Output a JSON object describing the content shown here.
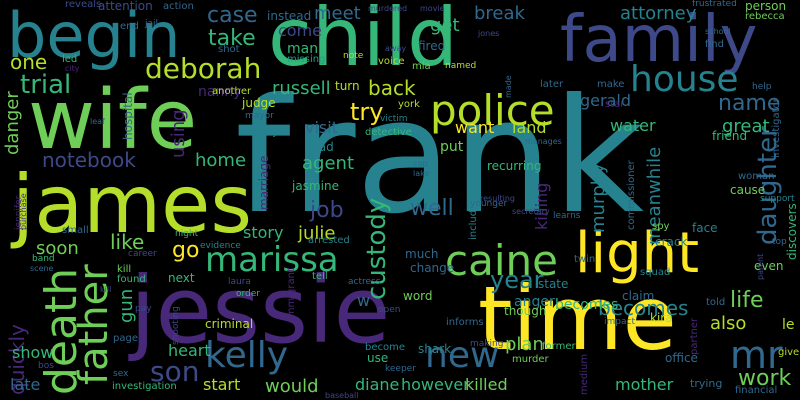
{
  "palette": {
    "background": "#000000",
    "yellow": "#fde725",
    "lime": "#b5de2b",
    "green": "#6ece58",
    "seagreen": "#35b779",
    "teal": "#1f9e89",
    "blue": "#26828e",
    "steel": "#31688e",
    "indigo": "#3e4989",
    "purple": "#482878",
    "dark": "#440154"
  },
  "words": [
    {
      "text": "frank",
      "color": "#26828e"
    },
    {
      "text": "child",
      "color": "#35b779"
    },
    {
      "text": "jessie",
      "color": "#482878"
    },
    {
      "text": "wife",
      "color": "#6ece58"
    },
    {
      "text": "james",
      "color": "#b5de2b"
    },
    {
      "text": "time",
      "color": "#fde725"
    },
    {
      "text": "family",
      "color": "#3e4989"
    },
    {
      "text": "begin",
      "color": "#26828e"
    },
    {
      "text": "light",
      "color": "#fde725"
    },
    {
      "text": "police",
      "color": "#b5de2b"
    },
    {
      "text": "death",
      "color": "#6ece58"
    },
    {
      "text": "caine",
      "color": "#6ece58"
    },
    {
      "text": "marissa",
      "color": "#35b779"
    },
    {
      "text": "father",
      "color": "#6ece58"
    },
    {
      "text": "kelly",
      "color": "#31688e"
    },
    {
      "text": "house",
      "color": "#26828e"
    },
    {
      "text": "new",
      "color": "#31688e"
    },
    {
      "text": "mr",
      "color": "#31688e"
    },
    {
      "text": "son",
      "color": "#3e4989"
    },
    {
      "text": "deborah",
      "color": "#b5de2b"
    },
    {
      "text": "trial",
      "color": "#35b779"
    },
    {
      "text": "daughter",
      "color": "#31688e"
    },
    {
      "text": "year",
      "color": "#26828e"
    },
    {
      "text": "name",
      "color": "#31688e"
    },
    {
      "text": "life",
      "color": "#6ece58"
    },
    {
      "text": "work",
      "color": "#6ece58"
    },
    {
      "text": "becomes",
      "color": "#26828e"
    },
    {
      "text": "custody",
      "color": "#35b779"
    },
    {
      "text": "quickly",
      "color": "#482878"
    },
    {
      "text": "attorney",
      "color": "#26828e"
    },
    {
      "text": "great",
      "color": "#35b779"
    },
    {
      "text": "case",
      "color": "#31688e"
    },
    {
      "text": "take",
      "color": "#35b779"
    },
    {
      "text": "russell",
      "color": "#35b779"
    },
    {
      "text": "back",
      "color": "#b5de2b"
    },
    {
      "text": "try",
      "color": "#fde725"
    },
    {
      "text": "meet",
      "color": "#31688e"
    },
    {
      "text": "get",
      "color": "#35b779"
    },
    {
      "text": "break",
      "color": "#31688e"
    },
    {
      "text": "notebook",
      "color": "#3e4989"
    },
    {
      "text": "agent",
      "color": "#35b779"
    },
    {
      "text": "visit",
      "color": "#31688e"
    },
    {
      "text": "danger",
      "color": "#6ece58"
    },
    {
      "text": "home",
      "color": "#35b779"
    },
    {
      "text": "using",
      "color": "#482878"
    },
    {
      "text": "job",
      "color": "#3e4989"
    },
    {
      "text": "julie",
      "color": "#b5de2b"
    },
    {
      "text": "story",
      "color": "#35b779"
    },
    {
      "text": "go",
      "color": "#fde725"
    },
    {
      "text": "like",
      "color": "#6ece58"
    },
    {
      "text": "soon",
      "color": "#6ece58"
    },
    {
      "text": "heart",
      "color": "#35b779"
    },
    {
      "text": "would",
      "color": "#6ece58"
    },
    {
      "text": "start",
      "color": "#b5de2b"
    },
    {
      "text": "show",
      "color": "#35b779"
    },
    {
      "text": "late",
      "color": "#31688e"
    },
    {
      "text": "gun",
      "color": "#35b779"
    },
    {
      "text": "plan",
      "color": "#6ece58"
    },
    {
      "text": "diane",
      "color": "#35b779"
    },
    {
      "text": "however",
      "color": "#35b779"
    },
    {
      "text": "killed",
      "color": "#6ece58"
    },
    {
      "text": "mother",
      "color": "#35b779"
    },
    {
      "text": "also",
      "color": "#b5de2b"
    },
    {
      "text": "one",
      "color": "#b5de2b"
    },
    {
      "text": "come",
      "color": "#3e4989"
    },
    {
      "text": "gerald",
      "color": "#31688e"
    },
    {
      "text": "land",
      "color": "#b5de2b"
    },
    {
      "text": "want",
      "color": "#fde725"
    },
    {
      "text": "water",
      "color": "#35b779"
    },
    {
      "text": "meanwhile",
      "color": "#26828e"
    },
    {
      "text": "murphy",
      "color": "#26828e"
    },
    {
      "text": "killing",
      "color": "#482878"
    },
    {
      "text": "well",
      "color": "#31688e"
    },
    {
      "text": "put",
      "color": "#6ece58"
    },
    {
      "text": "recurring",
      "color": "#35b779"
    },
    {
      "text": "anger",
      "color": "#26828e"
    },
    {
      "text": "becomes",
      "color": "#35b779"
    },
    {
      "text": "nanny",
      "color": "#482878"
    },
    {
      "text": "marriage",
      "color": "#482878"
    },
    {
      "text": "jasmine",
      "color": "#35b779"
    },
    {
      "text": "instead",
      "color": "#31688e"
    },
    {
      "text": "fired",
      "color": "#31688e"
    },
    {
      "text": "man",
      "color": "#35b779"
    },
    {
      "text": "missing",
      "color": "#1f9e89"
    },
    {
      "text": "person",
      "color": "#6ece58"
    },
    {
      "text": "rebecca",
      "color": "#6ece58"
    },
    {
      "text": "change",
      "color": "#31688e"
    },
    {
      "text": "much",
      "color": "#31688e"
    },
    {
      "text": "state",
      "color": "#26828e"
    },
    {
      "text": "word",
      "color": "#6ece58"
    },
    {
      "text": "shark",
      "color": "#26828e"
    },
    {
      "text": "become",
      "color": "#26828e"
    },
    {
      "text": "murder",
      "color": "#6ece58"
    },
    {
      "text": "criminal",
      "color": "#b5de2b"
    },
    {
      "text": "investigation",
      "color": "#35b779"
    },
    {
      "text": "next",
      "color": "#35b779"
    },
    {
      "text": "kill",
      "color": "#6ece58"
    },
    {
      "text": "found",
      "color": "#35b779"
    },
    {
      "text": "detective",
      "color": "#35b779"
    },
    {
      "text": "judge",
      "color": "#b5de2b"
    },
    {
      "text": "deputy",
      "color": "#26828e"
    },
    {
      "text": "lead",
      "color": "#26828e"
    },
    {
      "text": "arrested",
      "color": "#26828e"
    },
    {
      "text": "evidence",
      "color": "#26828e"
    },
    {
      "text": "another",
      "color": "#b5de2b"
    },
    {
      "text": "hospital",
      "color": "#31688e"
    },
    {
      "text": "jennifer",
      "color": "#482878"
    },
    {
      "text": "attention",
      "color": "#3e4989"
    },
    {
      "text": "reveals",
      "color": "#3e4989"
    },
    {
      "text": "action",
      "color": "#31688e"
    },
    {
      "text": "end",
      "color": "#31688e"
    },
    {
      "text": "jail",
      "color": "#31688e"
    },
    {
      "text": "shot",
      "color": "#31688e"
    },
    {
      "text": "led",
      "color": "#35b779"
    },
    {
      "text": "turn",
      "color": "#b5de2b"
    },
    {
      "text": "voice",
      "color": "#b5de2b"
    },
    {
      "text": "note",
      "color": "#b5de2b"
    },
    {
      "text": "mia",
      "color": "#6ece58"
    },
    {
      "text": "named",
      "color": "#b5de2b"
    },
    {
      "text": "york",
      "color": "#b5de2b"
    },
    {
      "text": "mayor",
      "color": "#31688e"
    },
    {
      "text": "victim",
      "color": "#26828e"
    },
    {
      "text": "later",
      "color": "#31688e"
    },
    {
      "text": "make",
      "color": "#31688e"
    },
    {
      "text": "star",
      "color": "#482878"
    },
    {
      "text": "friend",
      "color": "#35b779"
    },
    {
      "text": "investigator",
      "color": "#31688e"
    },
    {
      "text": "help",
      "color": "#31688e"
    },
    {
      "text": "woman",
      "color": "#31688e"
    },
    {
      "text": "cause",
      "color": "#6ece58"
    },
    {
      "text": "support",
      "color": "#26828e"
    },
    {
      "text": "discovers",
      "color": "#35b779"
    },
    {
      "text": "crack",
      "color": "#26828e"
    },
    {
      "text": "face",
      "color": "#26828e"
    },
    {
      "text": "spy",
      "color": "#6ece58"
    },
    {
      "text": "twin",
      "color": "#31688e"
    },
    {
      "text": "squad",
      "color": "#26828e"
    },
    {
      "text": "claim",
      "color": "#31688e"
    },
    {
      "text": "impact",
      "color": "#31688e"
    },
    {
      "text": "kira",
      "color": "#b5de2b"
    },
    {
      "text": "told",
      "color": "#31688e"
    },
    {
      "text": "partner",
      "color": "#482878"
    },
    {
      "text": "office",
      "color": "#31688e"
    },
    {
      "text": "trying",
      "color": "#31688e"
    },
    {
      "text": "financial",
      "color": "#31688e"
    },
    {
      "text": "give",
      "color": "#b5de2b"
    },
    {
      "text": "le",
      "color": "#b5de2b"
    },
    {
      "text": "even",
      "color": "#6ece58"
    },
    {
      "text": "top",
      "color": "#31688e"
    },
    {
      "text": "former",
      "color": "#35b779"
    },
    {
      "text": "medium",
      "color": "#482878"
    },
    {
      "text": "commissioner",
      "color": "#31688e"
    },
    {
      "text": "including",
      "color": "#26828e"
    },
    {
      "text": "younger",
      "color": "#31688e"
    },
    {
      "text": "learns",
      "color": "#31688e"
    },
    {
      "text": "secretary",
      "color": "#3e4989"
    },
    {
      "text": "resulting",
      "color": "#3e4989"
    },
    {
      "text": "making",
      "color": "#3e4989"
    },
    {
      "text": "keeper",
      "color": "#31688e"
    },
    {
      "text": "use",
      "color": "#35b779"
    },
    {
      "text": "informs",
      "color": "#31688e"
    },
    {
      "text": "though",
      "color": "#6ece58"
    },
    {
      "text": "open",
      "color": "#3e4989"
    },
    {
      "text": "actress",
      "color": "#31688e"
    },
    {
      "text": "tell",
      "color": "#35b779"
    },
    {
      "text": "immigrant",
      "color": "#482878"
    },
    {
      "text": "laura",
      "color": "#3e4989"
    },
    {
      "text": "order",
      "color": "#35b779"
    },
    {
      "text": "shooting",
      "color": "#3e4989"
    },
    {
      "text": "page",
      "color": "#31688e"
    },
    {
      "text": "pay",
      "color": "#3e4989"
    },
    {
      "text": "sex",
      "color": "#31688e"
    },
    {
      "text": "bos",
      "color": "#3e4989"
    },
    {
      "text": "band",
      "color": "#35b779"
    },
    {
      "text": "small",
      "color": "#31688e"
    },
    {
      "text": "career",
      "color": "#3e4989"
    },
    {
      "text": "night",
      "color": "#35b779"
    },
    {
      "text": "purchase",
      "color": "#482878"
    },
    {
      "text": "scene",
      "color": "#31688e"
    },
    {
      "text": "city",
      "color": "#482878"
    },
    {
      "text": "leaf",
      "color": "#31688e"
    },
    {
      "text": "w",
      "color": "#31688e"
    },
    {
      "text": "cop",
      "color": "#31688e"
    },
    {
      "text": "lake",
      "color": "#31688e"
    },
    {
      "text": "manages",
      "color": "#31688e"
    },
    {
      "text": "made",
      "color": "#31688e"
    },
    {
      "text": "movie",
      "color": "#3e4989"
    },
    {
      "text": "jones",
      "color": "#3e4989"
    },
    {
      "text": "murdered",
      "color": "#3e4989"
    },
    {
      "text": "away",
      "color": "#3e4989"
    },
    {
      "text": "frustrated",
      "color": "#31688e"
    },
    {
      "text": "find",
      "color": "#31688e"
    },
    {
      "text": "school",
      "color": "#31688e"
    },
    {
      "text": "parent",
      "color": "#3e4989"
    },
    {
      "text": "kill",
      "color": "#3e4989"
    },
    {
      "text": "baseball",
      "color": "#3e4989"
    }
  ]
}
